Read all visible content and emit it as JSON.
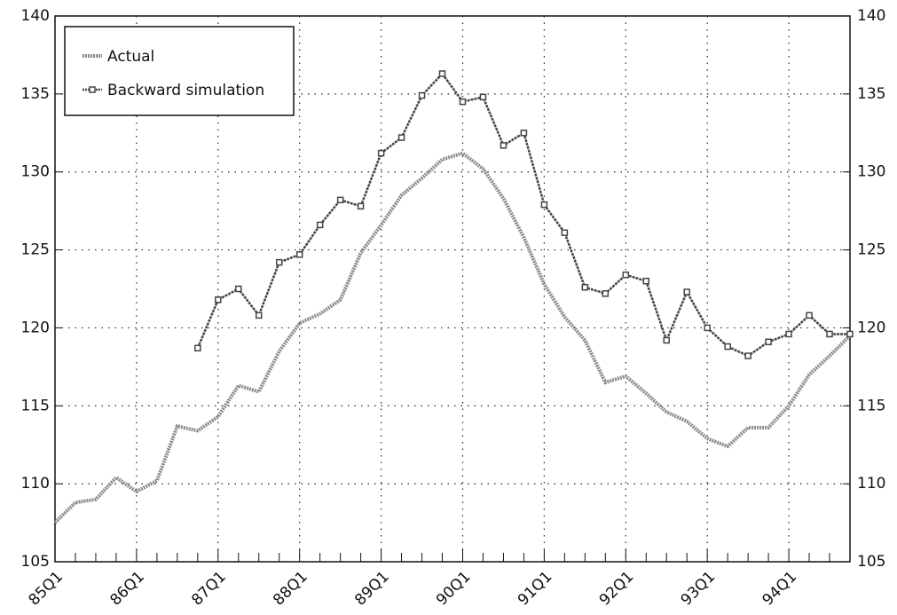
{
  "chart_data": {
    "type": "line",
    "categories": [
      "85Q1",
      null,
      null,
      null,
      "86Q1",
      null,
      null,
      null,
      "87Q1",
      null,
      null,
      null,
      "88Q1",
      null,
      null,
      null,
      "89Q1",
      null,
      null,
      null,
      "90Q1",
      null,
      null,
      null,
      "91Q1",
      null,
      null,
      null,
      "92Q1",
      null,
      null,
      null,
      "93Q1",
      null,
      null,
      null,
      "94Q1",
      null,
      null,
      null
    ],
    "series": [
      {
        "name": "Actual",
        "color": "#8a8a8a",
        "marker": "none",
        "values": [
          107.5,
          108.8,
          109.0,
          110.4,
          109.5,
          110.2,
          113.7,
          113.4,
          114.3,
          116.3,
          115.9,
          118.5,
          120.3,
          120.9,
          121.8,
          124.8,
          126.6,
          128.5,
          129.6,
          130.8,
          131.2,
          130.2,
          128.3,
          125.8,
          122.8,
          120.7,
          119.2,
          116.5,
          116.9,
          115.8,
          114.6,
          114.0,
          112.9,
          112.4,
          113.6,
          113.6,
          115.0,
          117.0,
          118.2,
          119.5
        ]
      },
      {
        "name": "Backward simulation",
        "color": "#444444",
        "marker": "square",
        "values": [
          null,
          null,
          null,
          null,
          null,
          null,
          null,
          118.7,
          121.8,
          122.5,
          120.8,
          124.2,
          124.7,
          126.6,
          128.2,
          127.8,
          131.2,
          132.2,
          134.9,
          136.3,
          134.5,
          134.8,
          131.7,
          132.5,
          127.9,
          126.1,
          122.6,
          122.2,
          123.4,
          123.0,
          119.2,
          122.3,
          120.0,
          118.8,
          118.2,
          119.1,
          119.6,
          120.8,
          119.6,
          119.6
        ]
      }
    ],
    "ylim": [
      105,
      140
    ],
    "yticks": [
      105,
      110,
      115,
      120,
      125,
      130,
      135,
      140
    ],
    "grid": true,
    "legend": "top-left"
  }
}
